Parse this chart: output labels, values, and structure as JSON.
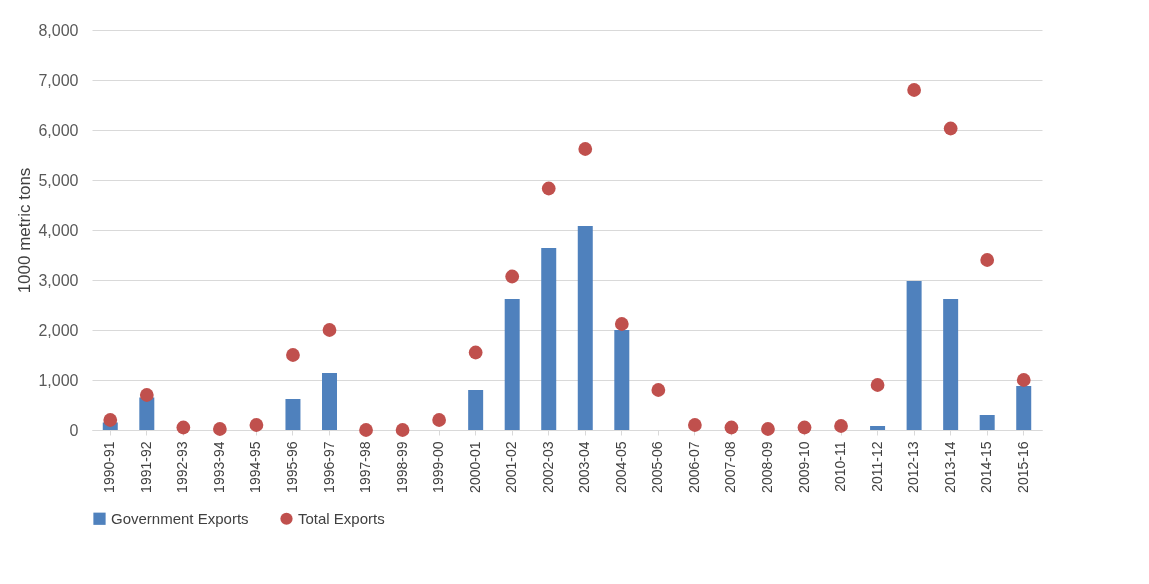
{
  "chart_data": {
    "type": "bar",
    "ylabel": "1000 metric tons",
    "categories": [
      "1990-91",
      "1991-92",
      "1992-93",
      "1993-94",
      "1994-95",
      "1995-96",
      "1996-97",
      "1997-98",
      "1998-99",
      "1999-00",
      "2000-01",
      "2001-02",
      "2002-03",
      "2003-04",
      "2004-05",
      "2005-06",
      "2006-07",
      "2007-08",
      "2008-09",
      "2009-10",
      "2010-11",
      "2011-12",
      "2012-13",
      "2013-14",
      "2014-15",
      "2015-16"
    ],
    "series": [
      {
        "name": "Government Exports",
        "color": "#4f81bd",
        "values": [
          150,
          650,
          0,
          0,
          0,
          620,
          1140,
          0,
          0,
          0,
          800,
          2620,
          3640,
          4080,
          2000,
          0,
          0,
          0,
          0,
          0,
          0,
          80,
          2980,
          2620,
          300,
          880
        ]
      },
      {
        "name": "Total Exports",
        "type": "scatter",
        "color": "#c0504d",
        "values": [
          200,
          700,
          50,
          20,
          100,
          1500,
          2000,
          0,
          0,
          200,
          1550,
          3070,
          4830,
          5620,
          2120,
          800,
          100,
          50,
          20,
          50,
          80,
          900,
          6800,
          6030,
          3400,
          1000
        ]
      }
    ],
    "ylim": [
      0,
      8000
    ],
    "yticks": [
      0,
      {
        "value": 1000,
        "label": "1,000"
      },
      {
        "value": 2000,
        "label": "2,000"
      },
      {
        "value": 3000,
        "label": "3,000"
      },
      {
        "value": 4000,
        "label": "4,000"
      },
      {
        "value": 5000,
        "label": "5,000"
      },
      {
        "value": 6000,
        "label": "6,000"
      },
      {
        "value": 7000,
        "label": "7,000"
      },
      {
        "value": 8000,
        "label": "8,000"
      }
    ],
    "grid": "y",
    "legend": "bottom",
    "marker": "circle"
  }
}
